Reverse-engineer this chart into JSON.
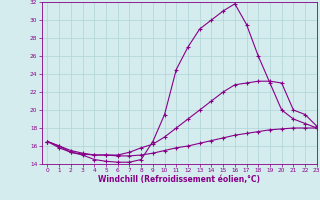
{
  "title": "",
  "xlabel": "Windchill (Refroidissement éolien,°C)",
  "ylabel": "",
  "bg_color": "#d4ecee",
  "grid_color": "#b0d4d8",
  "line_color": "#880088",
  "xlim": [
    -0.5,
    23
  ],
  "ylim": [
    14,
    32
  ],
  "xticks": [
    0,
    1,
    2,
    3,
    4,
    5,
    6,
    7,
    8,
    9,
    10,
    11,
    12,
    13,
    14,
    15,
    16,
    17,
    18,
    19,
    20,
    21,
    22,
    23
  ],
  "yticks": [
    14,
    16,
    18,
    20,
    22,
    24,
    26,
    28,
    30,
    32
  ],
  "curve1_x": [
    0,
    1,
    2,
    3,
    4,
    5,
    6,
    7,
    8,
    9,
    10,
    11,
    12,
    13,
    14,
    15,
    16,
    17,
    18,
    19,
    20,
    21,
    22,
    23
  ],
  "curve1_y": [
    16.5,
    16.0,
    15.3,
    15.0,
    14.5,
    14.3,
    14.2,
    14.2,
    14.5,
    16.5,
    19.5,
    24.5,
    27.0,
    29.0,
    30.0,
    31.0,
    31.8,
    29.5,
    26.0,
    23.0,
    20.0,
    19.0,
    18.5,
    18.0
  ],
  "curve2_x": [
    0,
    1,
    2,
    3,
    4,
    5,
    6,
    7,
    8,
    9,
    10,
    11,
    12,
    13,
    14,
    15,
    16,
    17,
    18,
    19,
    20,
    21,
    22,
    23
  ],
  "curve2_y": [
    16.5,
    16.0,
    15.5,
    15.2,
    15.0,
    15.0,
    15.0,
    15.3,
    15.8,
    16.2,
    17.0,
    18.0,
    19.0,
    20.0,
    21.0,
    22.0,
    22.8,
    23.0,
    23.2,
    23.2,
    23.0,
    20.0,
    19.5,
    18.2
  ],
  "curve3_x": [
    0,
    1,
    2,
    3,
    4,
    5,
    6,
    7,
    8,
    9,
    10,
    11,
    12,
    13,
    14,
    15,
    16,
    17,
    18,
    19,
    20,
    21,
    22,
    23
  ],
  "curve3_y": [
    16.5,
    15.8,
    15.3,
    15.1,
    15.0,
    15.0,
    14.9,
    14.9,
    15.0,
    15.2,
    15.5,
    15.8,
    16.0,
    16.3,
    16.6,
    16.9,
    17.2,
    17.4,
    17.6,
    17.8,
    17.9,
    18.0,
    18.0,
    18.0
  ]
}
